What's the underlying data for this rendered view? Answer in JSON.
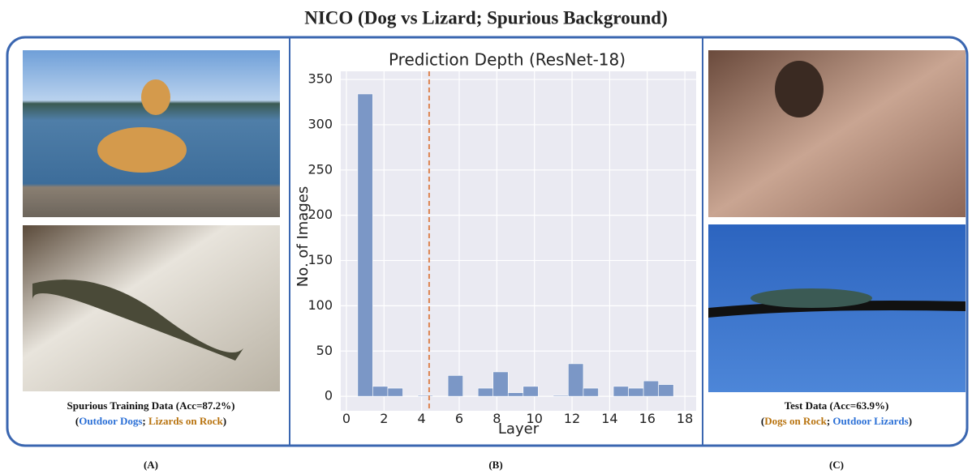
{
  "title": "NICO (Dog vs Lizard; Spurious Background)",
  "left": {
    "caption_title": "Spurious Training Data (Acc=87.2%)",
    "caption_parts": [
      "(",
      "Outdoor Dogs",
      ";",
      " Lizards on Rock",
      ")"
    ],
    "label": "(A)"
  },
  "right": {
    "caption_title": "Test Data (Acc=63.9%)",
    "caption_parts": [
      "(",
      "Dogs on Rock",
      ";",
      " Outdoor Lizards",
      ")"
    ],
    "label": "(C)"
  },
  "middle_label": "(B)",
  "chart_data": {
    "type": "histogram",
    "title": "Prediction Depth (ResNet-18)",
    "x_label": "Layer",
    "y_label": "No. of Images",
    "bins": [
      0.6,
      1.4,
      2.2,
      3.0,
      3.8,
      4.6,
      5.4,
      6.2,
      7.0,
      7.8,
      8.6,
      9.4,
      10.2,
      11.0,
      11.8,
      12.6,
      13.4,
      14.2,
      15.0,
      15.8,
      16.6,
      17.4
    ],
    "values": [
      334,
      11,
      9,
      0,
      1,
      0,
      23,
      0,
      9,
      27,
      4,
      11,
      0,
      1,
      36,
      9,
      0,
      11,
      9,
      17,
      13
    ],
    "color": "#7b97c6",
    "vline": {
      "value": 4.4,
      "color": "#dd8452"
    },
    "xlim": [
      -0.3,
      18.6
    ],
    "ylim": [
      -16,
      359
    ],
    "xticks": [
      0,
      2,
      4,
      6,
      8,
      10,
      12,
      14,
      16,
      18
    ],
    "yticks": [
      0,
      50,
      100,
      150,
      200,
      250,
      300,
      350
    ],
    "grid": true
  }
}
